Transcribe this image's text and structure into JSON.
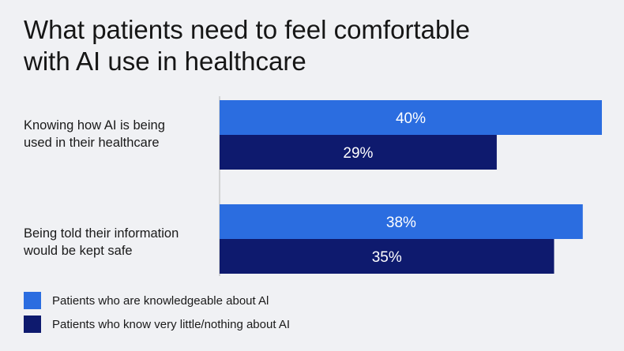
{
  "chart_data": {
    "type": "bar",
    "orientation": "horizontal",
    "title_lines": [
      "What patients need to feel comfortable",
      "with AI use in healthcare"
    ],
    "categories": [
      [
        "Knowing how AI is being",
        "used in their healthcare"
      ],
      [
        "Being told their information",
        "would be kept safe"
      ]
    ],
    "series": [
      {
        "name": "Patients who are knowledgeable about Al",
        "values": [
          40,
          38
        ],
        "labels": [
          "40%",
          "38%"
        ],
        "color": "#2b6de0"
      },
      {
        "name": "Patients who know very little/nothing about AI",
        "values": [
          29,
          35
        ],
        "labels": [
          "29%",
          "35%"
        ],
        "color": "#0e1a6e"
      }
    ],
    "unit": "%",
    "xlim": [
      0,
      40
    ],
    "grid": false,
    "axis_line_color": "#b5b5b5",
    "label_color": "#ffffff",
    "legend_position": "bottom-left"
  }
}
